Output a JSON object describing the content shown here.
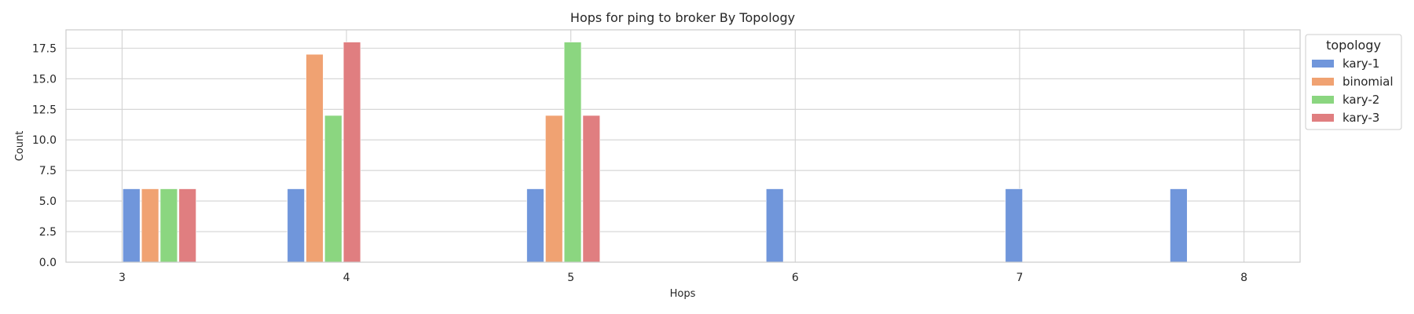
{
  "chart_data": {
    "type": "bar",
    "title": "Hops for ping to broker By Topology",
    "xlabel": "Hops",
    "ylabel": "Count",
    "xlim": [
      2.75,
      8.25
    ],
    "ylim": [
      0,
      19
    ],
    "x_ticks": [
      "3",
      "4",
      "5",
      "6",
      "7",
      "8"
    ],
    "y_ticks": [
      "0.0",
      "2.5",
      "5.0",
      "7.5",
      "10.0",
      "12.5",
      "15.0",
      "17.5"
    ],
    "grid": true,
    "legend": {
      "title": "topology",
      "placement": "outside-top-right"
    },
    "series": [
      {
        "name": "kary-1",
        "color": "#4c72b0",
        "points": [
          {
            "x": 3,
            "y": 6
          },
          {
            "x": 3.733,
            "y": 6
          },
          {
            "x": 4.8,
            "y": 6
          },
          {
            "x": 5.867,
            "y": 6
          },
          {
            "x": 6.933,
            "y": 6
          },
          {
            "x": 7.667,
            "y": 6
          }
        ]
      },
      {
        "name": "binomial",
        "color": "#dd8452",
        "points": [
          {
            "x": 3,
            "y": 6
          },
          {
            "x": 3.733,
            "y": 17
          },
          {
            "x": 4.8,
            "y": 12
          }
        ]
      },
      {
        "name": "kary-2",
        "color": "#55a868",
        "points": [
          {
            "x": 3,
            "y": 6
          },
          {
            "x": 3.733,
            "y": 12
          },
          {
            "x": 4.8,
            "y": 18
          }
        ]
      },
      {
        "name": "kary-3",
        "color": "#c44e52",
        "points": [
          {
            "x": 3,
            "y": 6
          },
          {
            "x": 3.733,
            "y": 18
          },
          {
            "x": 4.8,
            "y": 12
          }
        ]
      }
    ],
    "bar_colors": [
      "#7096db",
      "#f0a272",
      "#8bd680",
      "#e07e80"
    ]
  }
}
